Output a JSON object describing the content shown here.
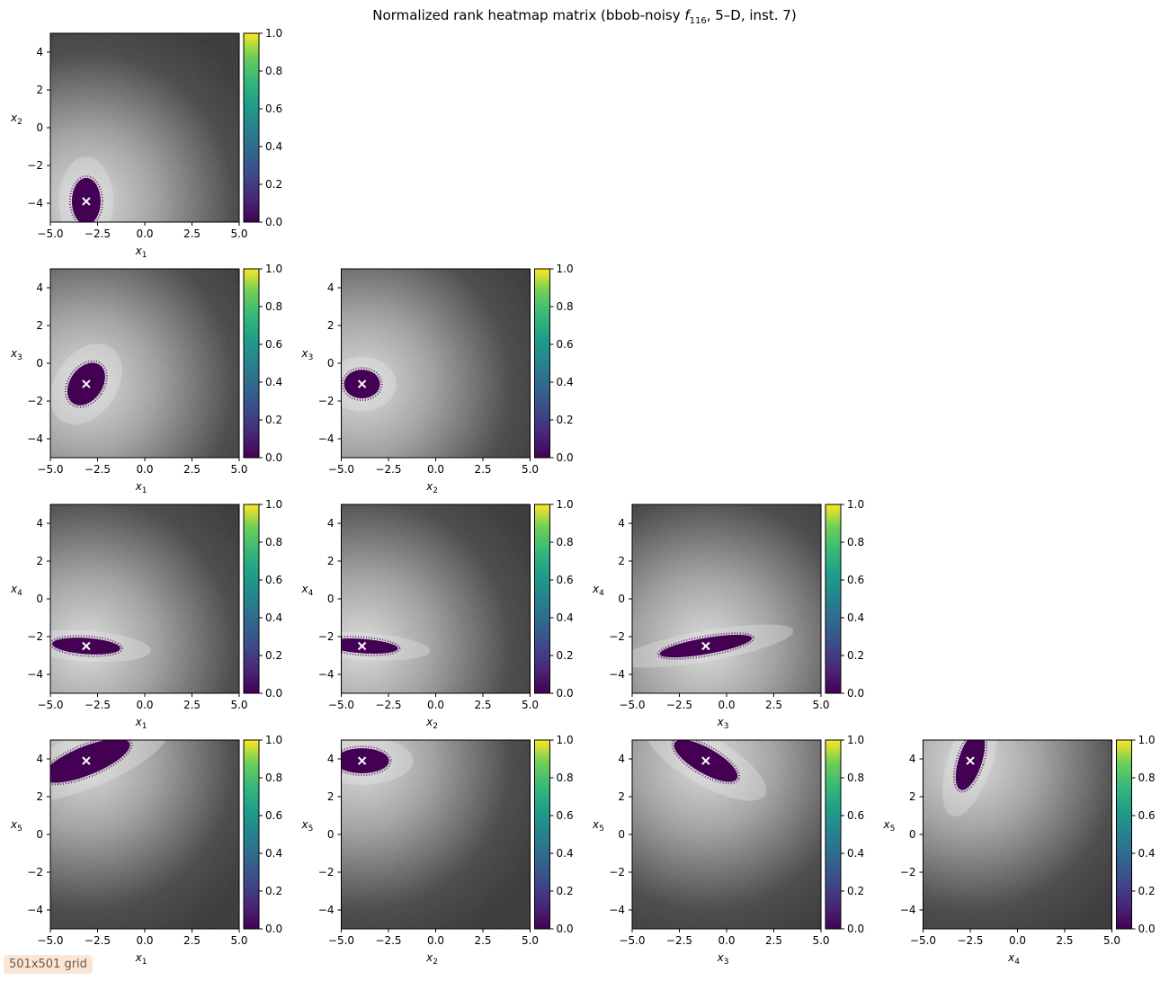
{
  "title": {
    "prefix": "Normalized rank heatmap matrix (bbob-noisy ",
    "fname": "f",
    "fsub": "116",
    "suffix": ", 5–D, inst. 7)"
  },
  "badge": "501x501 grid",
  "colors": {
    "low": "#440154",
    "high": "#fde725",
    "background_dark": "#2a2a2a",
    "background_light": "#d8d8d8",
    "marker": "#ffffff"
  },
  "chart_data": {
    "type": "heatmap",
    "colormap": "viridis",
    "grid": "501x501",
    "colorbar": {
      "range": [
        0,
        1
      ],
      "ticks": [
        "0.0",
        "0.2",
        "0.4",
        "0.6",
        "0.8",
        "1.0"
      ]
    },
    "axis_range": [
      -5,
      5
    ],
    "xticks": [
      "−5.0",
      "−2.5",
      "0.0",
      "2.5",
      "5.0"
    ],
    "yticks": [
      "−4",
      "−2",
      "0",
      "2",
      "4"
    ],
    "optimum": [
      -3.1,
      -3.9,
      -1.1,
      -2.5,
      3.9
    ],
    "panels": [
      {
        "row": 2,
        "col": 1,
        "xlabel": "x",
        "xsub": "1",
        "ylabel": "x",
        "ysub": "2"
      },
      {
        "row": 3,
        "col": 1,
        "xlabel": "x",
        "xsub": "1",
        "ylabel": "x",
        "ysub": "3"
      },
      {
        "row": 3,
        "col": 2,
        "xlabel": "x",
        "xsub": "2",
        "ylabel": "x",
        "ysub": "3"
      },
      {
        "row": 4,
        "col": 1,
        "xlabel": "x",
        "xsub": "1",
        "ylabel": "x",
        "ysub": "4"
      },
      {
        "row": 4,
        "col": 2,
        "xlabel": "x",
        "xsub": "2",
        "ylabel": "x",
        "ysub": "4"
      },
      {
        "row": 4,
        "col": 3,
        "xlabel": "x",
        "xsub": "3",
        "ylabel": "x",
        "ysub": "4"
      },
      {
        "row": 5,
        "col": 1,
        "xlabel": "x",
        "xsub": "1",
        "ylabel": "x",
        "ysub": "5"
      },
      {
        "row": 5,
        "col": 2,
        "xlabel": "x",
        "xsub": "2",
        "ylabel": "x",
        "ysub": "5"
      },
      {
        "row": 5,
        "col": 3,
        "xlabel": "x",
        "xsub": "3",
        "ylabel": "x",
        "ysub": "5"
      },
      {
        "row": 5,
        "col": 4,
        "xlabel": "x",
        "xsub": "4",
        "ylabel": "x",
        "ysub": "5"
      }
    ]
  }
}
